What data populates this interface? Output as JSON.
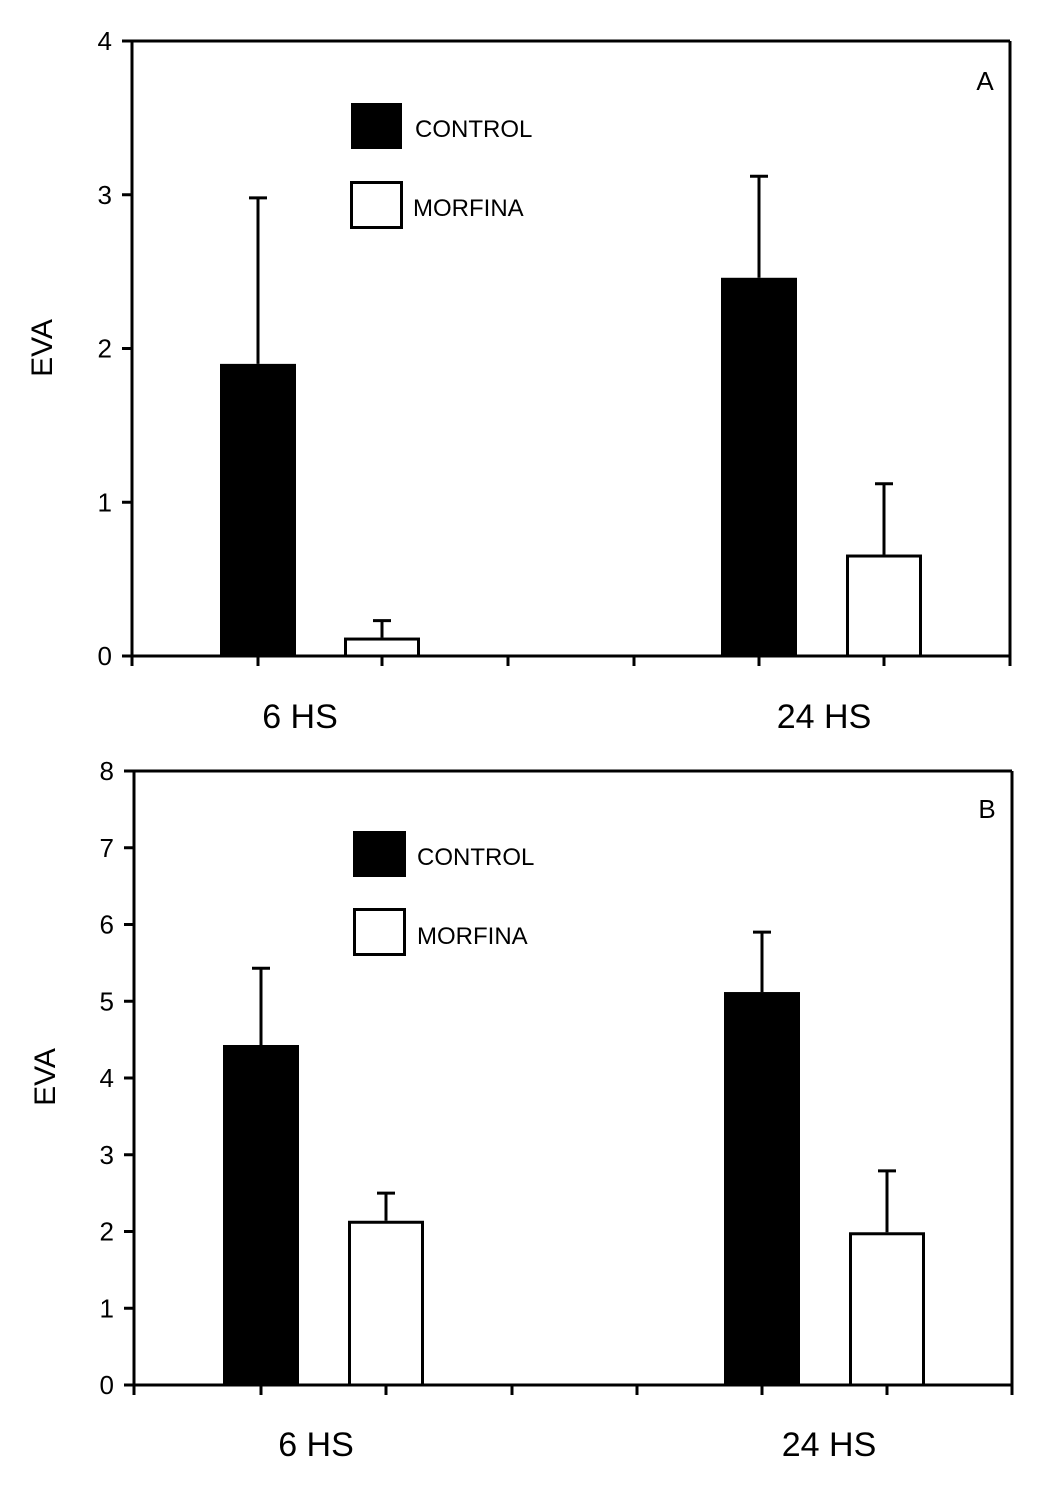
{
  "chart_data": [
    {
      "type": "bar",
      "panel_label": "A",
      "ylabel": "EVA",
      "xlabel": "",
      "ylim": [
        0,
        4
      ],
      "yticks": [
        "0",
        "1",
        "2",
        "3",
        "4"
      ],
      "categories": [
        "6 HS",
        "24 HS"
      ],
      "legend_position": "top-center",
      "series": [
        {
          "name": "CONTROL",
          "fill": "#000000",
          "values": [
            1.9,
            2.46
          ],
          "error_upper": [
            2.98,
            3.12
          ]
        },
        {
          "name": "MORFINA",
          "fill": "#ffffff",
          "values": [
            0.12,
            0.66
          ],
          "error_upper": [
            0.23,
            1.12
          ]
        }
      ]
    },
    {
      "type": "bar",
      "panel_label": "B",
      "ylabel": "EVA",
      "xlabel": "",
      "ylim": [
        0,
        8
      ],
      "yticks": [
        "0",
        "1",
        "2",
        "3",
        "4",
        "5",
        "6",
        "7",
        "8"
      ],
      "categories": [
        "6 HS",
        "24 HS"
      ],
      "legend_position": "top-center",
      "series": [
        {
          "name": "CONTROL",
          "fill": "#000000",
          "values": [
            4.43,
            5.12
          ],
          "error_upper": [
            5.43,
            5.9
          ]
        },
        {
          "name": "MORFINA",
          "fill": "#ffffff",
          "values": [
            2.14,
            1.99
          ],
          "error_upper": [
            2.5,
            2.79
          ]
        }
      ]
    }
  ]
}
